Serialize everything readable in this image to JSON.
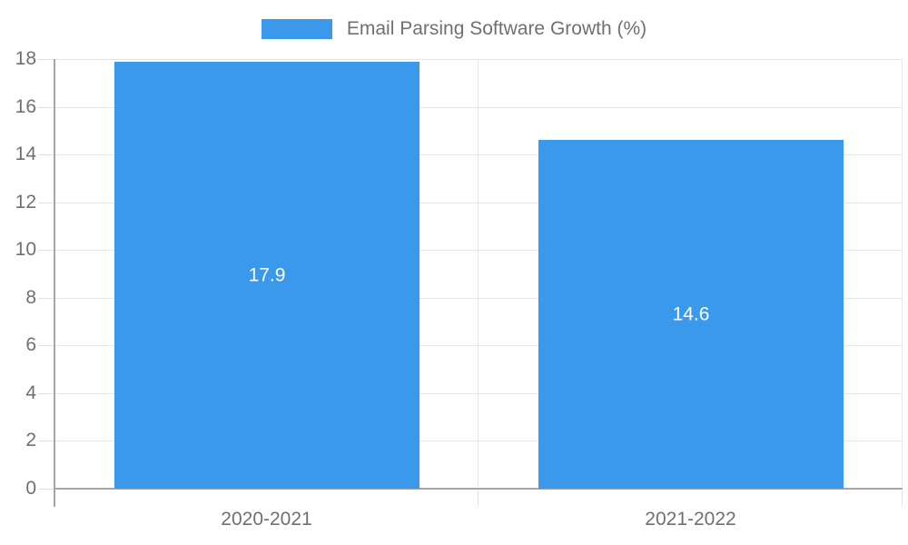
{
  "chart_data": {
    "type": "bar",
    "legend": "Email Parsing Software Growth (%)",
    "legend_position": "top-center",
    "categories": [
      "2020-2021",
      "2021-2022"
    ],
    "values": [
      17.9,
      14.6
    ],
    "value_labels": [
      "17.9",
      "14.6"
    ],
    "yticks": [
      0,
      2,
      4,
      6,
      8,
      10,
      12,
      14,
      16,
      18
    ],
    "ylim": [
      0,
      18
    ],
    "xlabel": "",
    "ylabel": "",
    "grid": true,
    "colors": {
      "bar": "#3B99EC",
      "label_text": "#707070",
      "value_label_text": "#FFFFFF",
      "axis_line": "#A6A6A6",
      "gridline": "#E6E6E6",
      "tick": "#E0E0E0",
      "background": "#FFFFFF"
    }
  }
}
